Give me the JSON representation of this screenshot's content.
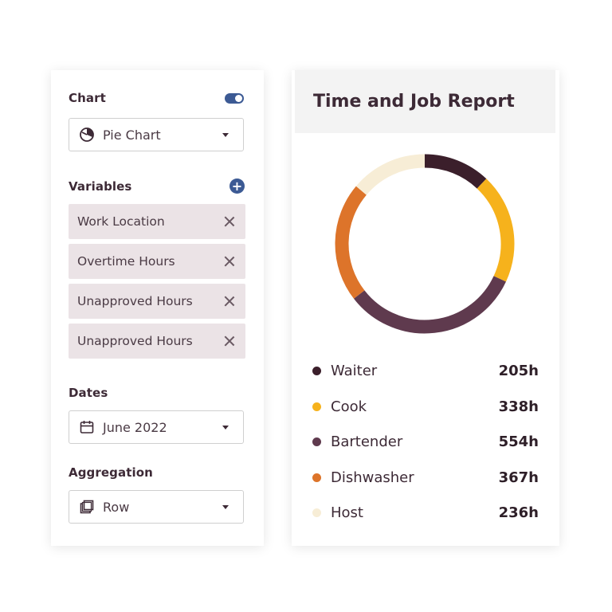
{
  "config": {
    "chart_label": "Chart",
    "chart_toggle_on": true,
    "chart_type": {
      "value": "Pie Chart",
      "icon": "pie-chart-icon"
    },
    "variables_label": "Variables",
    "variables": [
      "Work Location",
      "Overtime Hours",
      "Unapproved Hours",
      "Unapproved Hours"
    ],
    "dates_label": "Dates",
    "dates": {
      "value": "June 2022",
      "icon": "calendar-icon"
    },
    "aggregation_label": "Aggregation",
    "aggregation": {
      "value": "Row",
      "icon": "copy-icon"
    }
  },
  "report": {
    "title": "Time and Job Report",
    "legend": [
      {
        "name": "Waiter",
        "value": "205h",
        "color": "#3b1f2b"
      },
      {
        "name": "Cook",
        "value": "338h",
        "color": "#f6b21c"
      },
      {
        "name": "Bartender",
        "value": "554h",
        "color": "#5f3a4e"
      },
      {
        "name": "Dishwasher",
        "value": "367h",
        "color": "#dd742a"
      },
      {
        "name": "Host",
        "value": "236h",
        "color": "#f7edd6"
      }
    ]
  },
  "chart_data": {
    "type": "pie",
    "categories": [
      "Waiter",
      "Cook",
      "Bartender",
      "Dishwasher",
      "Host"
    ],
    "values": [
      205,
      338,
      554,
      367,
      236
    ],
    "colors": [
      "#3b1f2b",
      "#f6b21c",
      "#5f3a4e",
      "#dd742a",
      "#f7edd6"
    ]
  }
}
